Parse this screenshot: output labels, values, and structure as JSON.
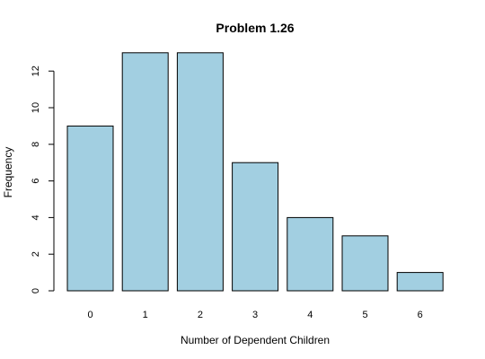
{
  "chart_data": {
    "type": "bar",
    "title": "Problem 1.26",
    "xlabel": "Number of Dependent Children",
    "ylabel": "Frequency",
    "categories": [
      "0",
      "1",
      "2",
      "3",
      "4",
      "5",
      "6"
    ],
    "values": [
      9,
      13,
      13,
      7,
      4,
      3,
      1
    ],
    "ylim": [
      0,
      13
    ],
    "yticks": [
      "0",
      "2",
      "4",
      "6",
      "8",
      "10",
      "12"
    ],
    "bar_color": "#a2cfe1",
    "grid": false,
    "legend": "none"
  }
}
